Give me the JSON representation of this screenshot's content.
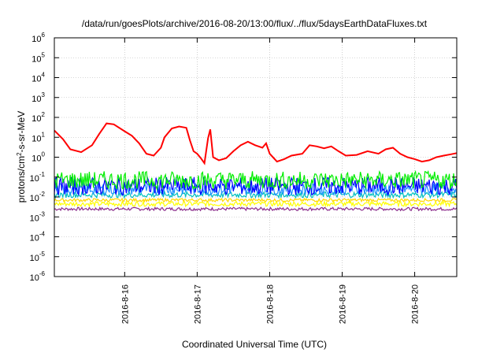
{
  "chart_data": {
    "type": "line",
    "title": "/data/run/goesPlots/archive/2016-08-20/13:00/flux/../flux/5daysEarthDataFluxes.txt",
    "xlabel": "Coordinated Universal Time (UTC)",
    "ylabel": "protons/cm2-s-sr-MeV",
    "y_scale": "log",
    "ylim": [
      1e-06,
      1000000.0
    ],
    "xlim": [
      -0.97,
      4.58
    ],
    "grid": true,
    "legend": "none",
    "x_ticks": [
      {
        "label": "2016-8-16",
        "value": 0
      },
      {
        "label": "2016-8-17",
        "value": 1
      },
      {
        "label": "2016-8-18",
        "value": 2
      },
      {
        "label": "2016-8-19",
        "value": 3
      },
      {
        "label": "2016-8-20",
        "value": 4
      }
    ],
    "y_ticks": [
      {
        "base": "10",
        "exp": "6",
        "value": 1000000.0
      },
      {
        "base": "10",
        "exp": "5",
        "value": 100000.0
      },
      {
        "base": "10",
        "exp": "4",
        "value": 10000.0
      },
      {
        "base": "10",
        "exp": "3",
        "value": 1000.0
      },
      {
        "base": "10",
        "exp": "2",
        "value": 100.0
      },
      {
        "base": "10",
        "exp": "1",
        "value": 10.0
      },
      {
        "base": "10",
        "exp": "0",
        "value": 1
      },
      {
        "base": "10",
        "exp": "-1",
        "value": 0.1
      },
      {
        "base": "10",
        "exp": "-2",
        "value": 0.01
      },
      {
        "base": "10",
        "exp": "-3",
        "value": 0.001
      },
      {
        "base": "10",
        "exp": "-4",
        "value": 0.0001
      },
      {
        "base": "10",
        "exp": "-5",
        "value": 1e-05
      },
      {
        "base": "10",
        "exp": "-6",
        "value": 1e-06
      }
    ],
    "series": [
      {
        "color": "#ff0000",
        "style": "smooth",
        "points": [
          [
            -0.97,
            22
          ],
          [
            -0.85,
            8
          ],
          [
            -0.75,
            2.5
          ],
          [
            -0.6,
            1.8
          ],
          [
            -0.45,
            4
          ],
          [
            -0.35,
            15
          ],
          [
            -0.25,
            50
          ],
          [
            -0.15,
            45
          ],
          [
            0.0,
            20
          ],
          [
            0.1,
            12
          ],
          [
            0.2,
            5
          ],
          [
            0.3,
            1.5
          ],
          [
            0.4,
            1.2
          ],
          [
            0.5,
            3
          ],
          [
            0.55,
            10
          ],
          [
            0.65,
            28
          ],
          [
            0.75,
            35
          ],
          [
            0.85,
            30
          ],
          [
            0.9,
            7
          ],
          [
            0.95,
            2
          ],
          [
            1.0,
            1.5
          ],
          [
            1.05,
            0.9
          ],
          [
            1.1,
            0.5
          ],
          [
            1.15,
            9
          ],
          [
            1.18,
            25
          ],
          [
            1.22,
            1.0
          ],
          [
            1.3,
            0.7
          ],
          [
            1.4,
            0.9
          ],
          [
            1.5,
            2
          ],
          [
            1.6,
            4
          ],
          [
            1.7,
            6
          ],
          [
            1.8,
            4
          ],
          [
            1.9,
            3
          ],
          [
            1.95,
            5
          ],
          [
            2.0,
            1.5
          ],
          [
            2.1,
            0.6
          ],
          [
            2.2,
            0.8
          ],
          [
            2.3,
            1.2
          ],
          [
            2.45,
            1.5
          ],
          [
            2.55,
            4
          ],
          [
            2.65,
            3.5
          ],
          [
            2.75,
            2.8
          ],
          [
            2.85,
            3.5
          ],
          [
            2.95,
            2
          ],
          [
            3.05,
            1.2
          ],
          [
            3.2,
            1.3
          ],
          [
            3.35,
            2
          ],
          [
            3.5,
            1.5
          ],
          [
            3.6,
            2.5
          ],
          [
            3.7,
            3
          ],
          [
            3.8,
            1.5
          ],
          [
            3.9,
            1.0
          ],
          [
            4.0,
            0.8
          ],
          [
            4.1,
            0.6
          ],
          [
            4.2,
            0.7
          ],
          [
            4.3,
            1.0
          ],
          [
            4.4,
            1.2
          ],
          [
            4.5,
            1.4
          ],
          [
            4.58,
            1.6
          ]
        ]
      },
      {
        "color": "#00ee00",
        "style": "noisy",
        "level": 0.07,
        "jitter": 0.45
      },
      {
        "color": "#0000ff",
        "style": "noisy",
        "level": 0.035,
        "jitter": 0.45
      },
      {
        "color": "#1e90ff",
        "style": "noisy",
        "level": 0.025,
        "jitter": 0.3
      },
      {
        "color": "#00c0c0",
        "style": "noisy",
        "level": 0.013,
        "jitter": 0.15
      },
      {
        "color": "#ffff00",
        "style": "noisy",
        "level": 0.0045,
        "jitter": 0.12
      },
      {
        "color": "#ffd700",
        "style": "noisy",
        "level": 0.007,
        "jitter": 0.08
      },
      {
        "color": "#8b2c8b",
        "style": "noisy",
        "level": 0.0025,
        "jitter": 0.08
      }
    ]
  }
}
